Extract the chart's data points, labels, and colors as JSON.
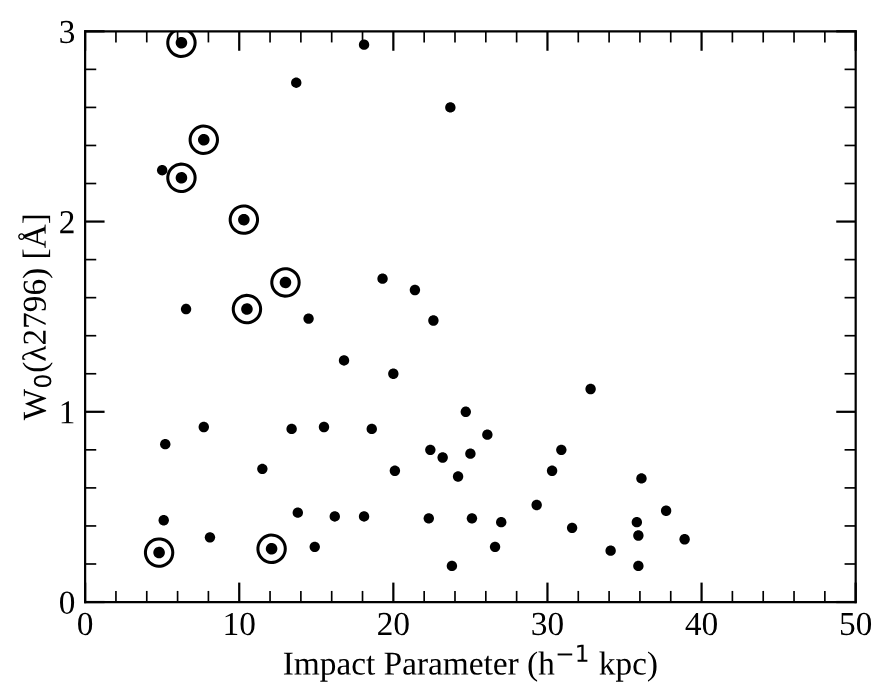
{
  "chart_data": {
    "type": "scatter",
    "xlabel": "Impact Parameter (h$^{−1}$ kpc)",
    "ylabel": "W$_{0}$(λ2796) [Å]",
    "xlim": [
      0,
      50
    ],
    "ylim": [
      0,
      3
    ],
    "xticks": [
      0,
      10,
      20,
      30,
      40,
      50
    ],
    "yticks": [
      0,
      1,
      2,
      3
    ],
    "grid": false,
    "legend": false,
    "series": [
      {
        "color": "#000000",
        "marker": "circle",
        "x": [
          18.1,
          13.7,
          23.7,
          5.0,
          6.55,
          14.5,
          22.6,
          16.8,
          20.0,
          19.3,
          21.4,
          5.2,
          7.7,
          13.4,
          15.5,
          18.6,
          11.5,
          20.1,
          22.4,
          23.2,
          25.0,
          24.2,
          24.7,
          26.1,
          32.8,
          30.9,
          30.3,
          36.1,
          37.7,
          35.8,
          35.9,
          38.9,
          35.9,
          34.1,
          31.6,
          29.3,
          27.0,
          26.6,
          25.1,
          22.3,
          5.1,
          8.1,
          13.8,
          16.2,
          18.1,
          14.9,
          23.8
        ],
        "values": [
          2.93,
          2.73,
          2.6,
          2.27,
          1.54,
          1.49,
          1.48,
          1.27,
          1.2,
          1.7,
          1.64,
          0.83,
          0.92,
          0.91,
          0.92,
          0.91,
          0.7,
          0.69,
          0.8,
          0.76,
          0.78,
          0.66,
          1.0,
          0.88,
          1.12,
          0.8,
          0.69,
          0.65,
          0.48,
          0.42,
          0.35,
          0.33,
          0.19,
          0.27,
          0.39,
          0.51,
          0.42,
          0.29,
          0.44,
          0.44,
          0.43,
          0.34,
          0.47,
          0.45,
          0.45,
          0.29,
          0.19
        ]
      },
      {
        "color": "#000000",
        "marker": "circle",
        "x": [
          6.25,
          7.7,
          6.25,
          10.3,
          10.5,
          13.0,
          4.8,
          12.1
        ],
        "values": [
          2.94,
          2.43,
          2.23,
          2.01,
          1.54,
          1.68,
          0.26,
          0.28
        ]
      }
    ]
  }
}
